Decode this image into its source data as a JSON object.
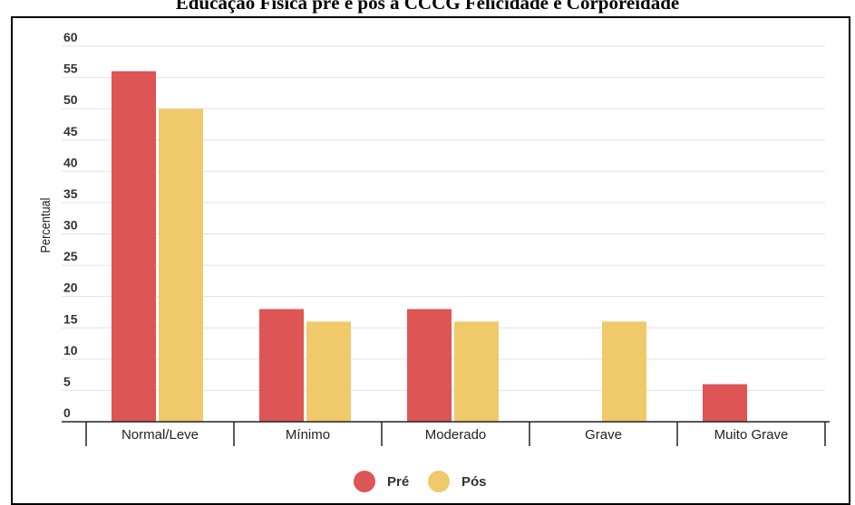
{
  "chart_data": {
    "type": "bar",
    "title": "Educação Física pré e pós a CCCG Felicidade e Corporeidade",
    "xlabel": "",
    "ylabel": "Percentual",
    "categories": [
      "Normal/Leve",
      "Mínimo",
      "Moderado",
      "Grave",
      "Muito Grave"
    ],
    "series": [
      {
        "name": "Pré",
        "color": "#dd5555",
        "values": [
          56,
          18,
          18,
          0,
          6
        ]
      },
      {
        "name": "Pós",
        "color": "#f0c96a",
        "values": [
          50,
          16,
          16,
          16,
          0
        ]
      }
    ],
    "ylim": [
      0,
      60
    ],
    "yticks": [
      "0",
      "5",
      "10",
      "15",
      "20",
      "25",
      "30",
      "35",
      "40",
      "45",
      "50",
      "55",
      "60"
    ],
    "grid": true,
    "legend_position": "bottom-center"
  }
}
